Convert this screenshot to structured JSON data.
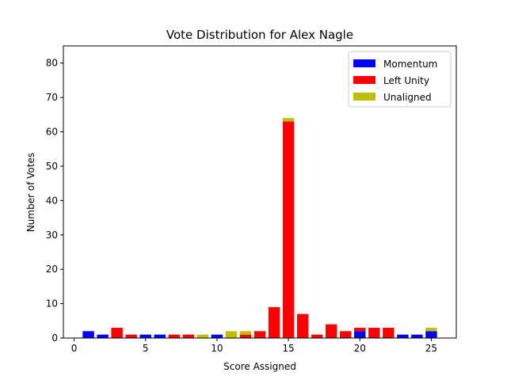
{
  "chart_data": {
    "type": "bar",
    "stacked": true,
    "title": "Vote Distribution for Alex Nagle",
    "xlabel": "Score Assigned",
    "ylabel": "Number of Votes",
    "xlim": [
      -0.75,
      26.75
    ],
    "ylim": [
      0,
      85
    ],
    "xticks": [
      0,
      5,
      10,
      15,
      20,
      25
    ],
    "yticks": [
      0,
      10,
      20,
      30,
      40,
      50,
      60,
      70,
      80
    ],
    "legend": "top-right",
    "grid": false,
    "x": [
      1,
      2,
      3,
      4,
      5,
      6,
      7,
      8,
      9,
      10,
      11,
      12,
      13,
      14,
      15,
      16,
      17,
      18,
      19,
      20,
      21,
      22,
      23,
      24,
      25
    ],
    "series": [
      {
        "name": "Momentum",
        "color": "#0000ff",
        "values": [
          2,
          1,
          0,
          0,
          1,
          1,
          0,
          0,
          0,
          1,
          0,
          0,
          0,
          0,
          0,
          0,
          0,
          0,
          0,
          2,
          0,
          0,
          1,
          1,
          2
        ]
      },
      {
        "name": "Left Unity",
        "color": "#ff0000",
        "values": [
          0,
          0,
          3,
          1,
          0,
          0,
          1,
          1,
          0,
          0,
          0,
          1,
          2,
          9,
          63,
          7,
          1,
          4,
          2,
          1,
          3,
          3,
          0,
          0,
          0
        ]
      },
      {
        "name": "Unaligned",
        "color": "#bfbf00",
        "values": [
          0,
          0,
          0,
          0,
          0,
          0,
          0,
          0,
          1,
          0,
          2,
          1,
          0,
          0,
          1,
          0,
          0,
          0,
          0,
          0,
          0,
          0,
          0,
          0,
          1
        ]
      }
    ]
  }
}
